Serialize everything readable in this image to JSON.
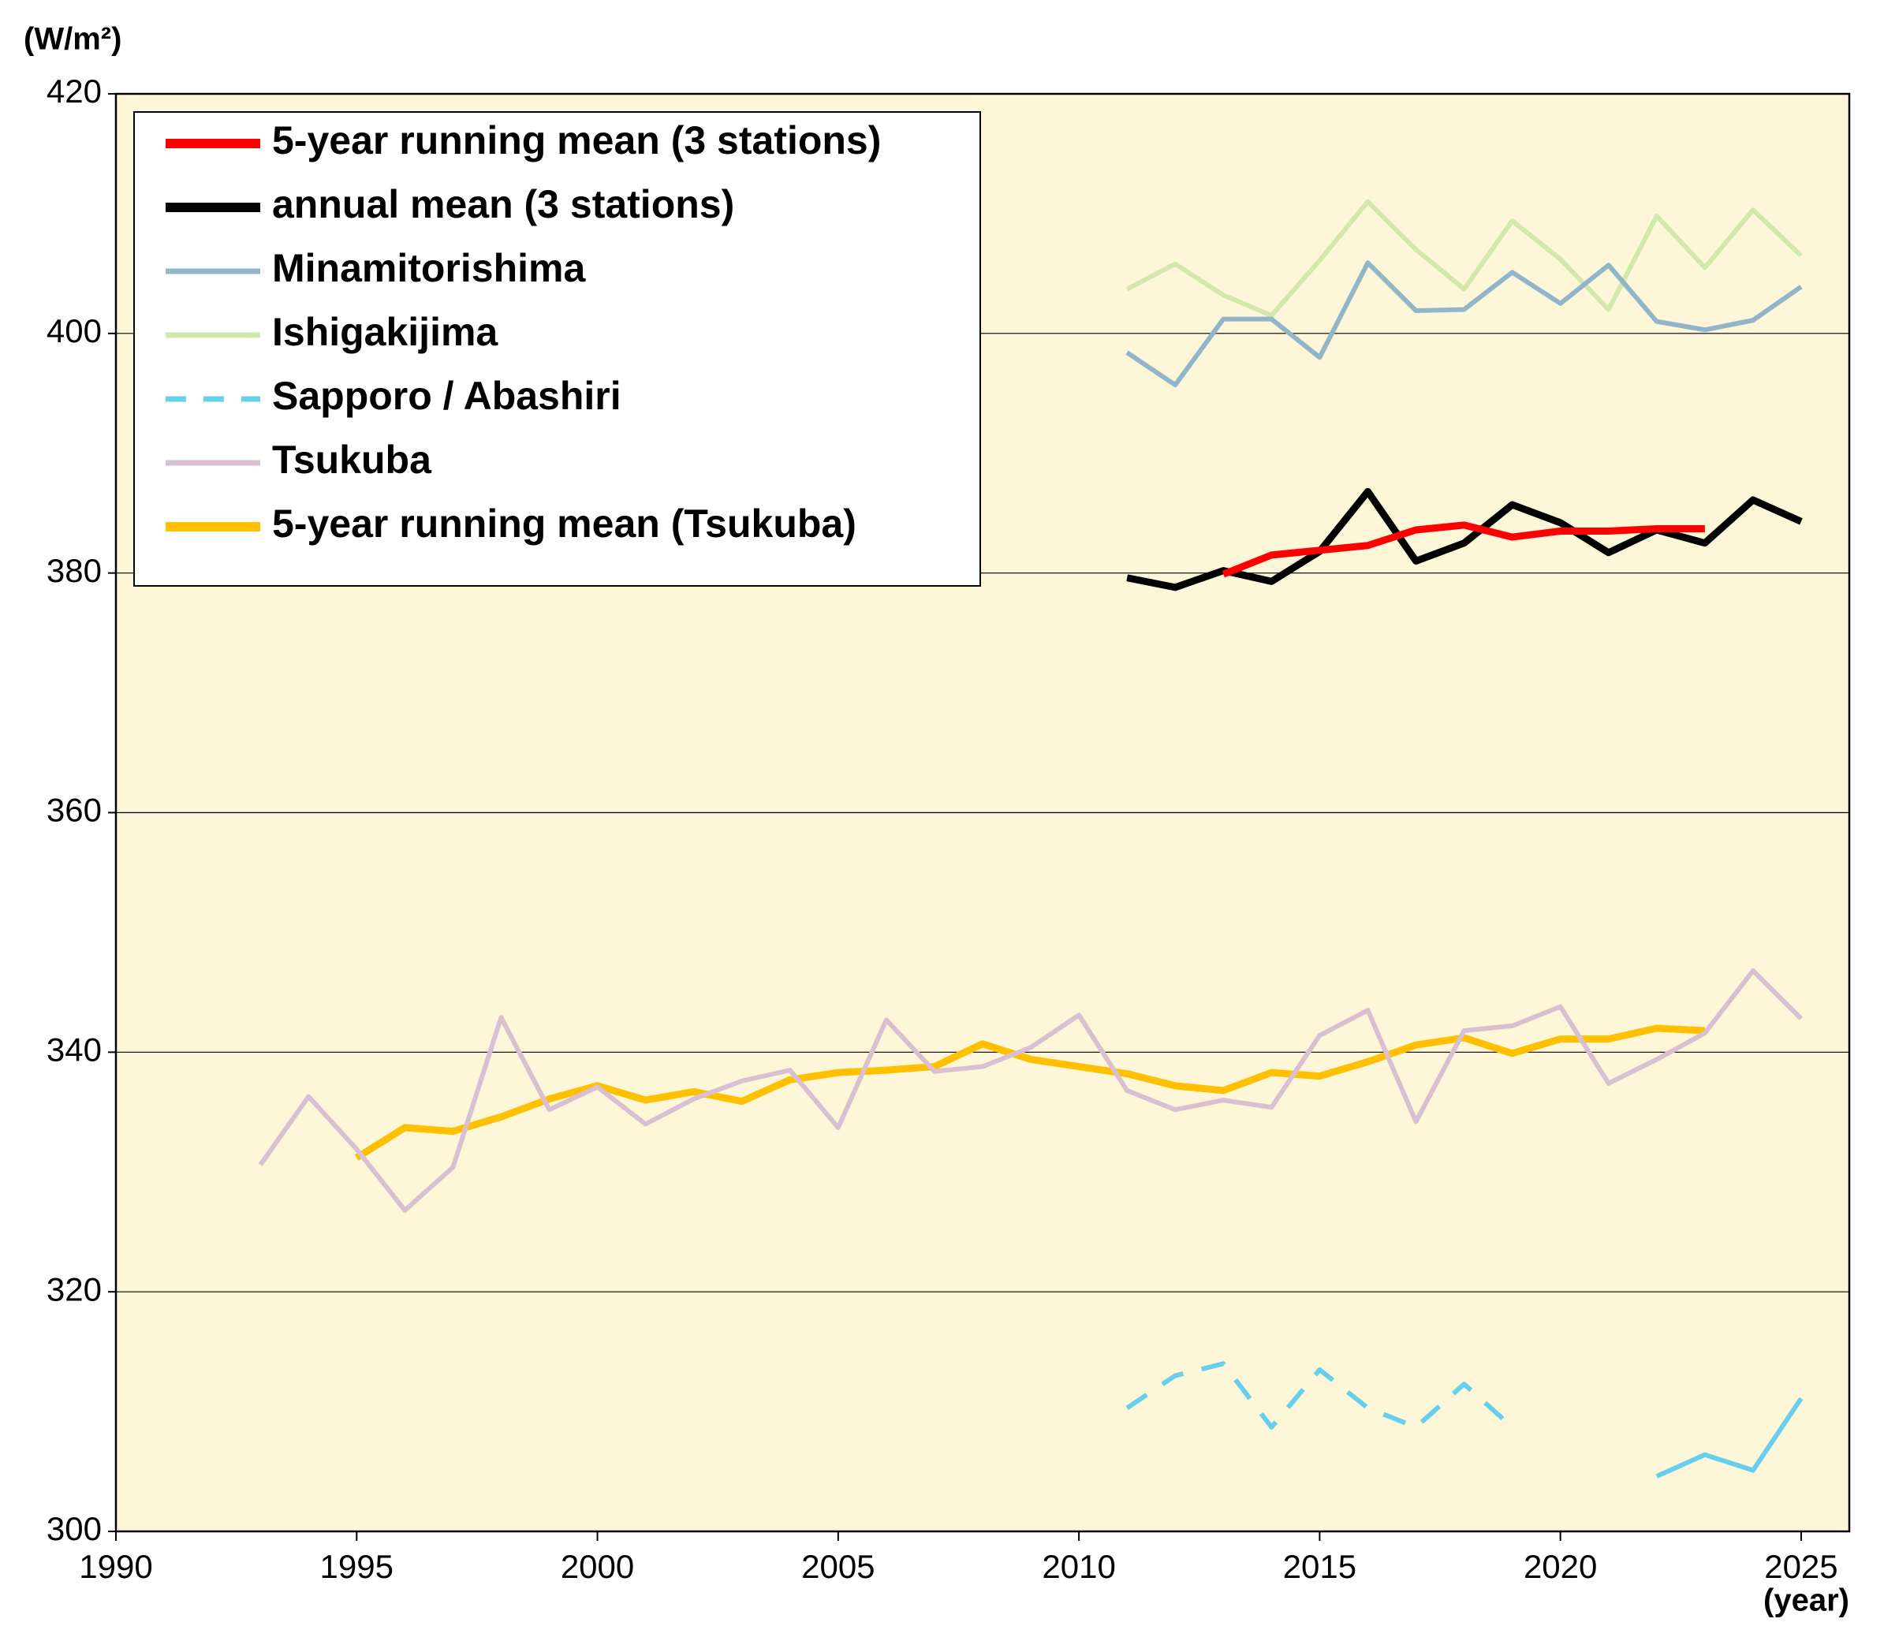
{
  "chart_data": {
    "type": "line",
    "y_label": "(W/m²)",
    "x_label": "(year)",
    "xlim": [
      1990,
      2026
    ],
    "xticks": [
      1990,
      1995,
      2000,
      2005,
      2010,
      2015,
      2020,
      2025
    ],
    "ylim": [
      300,
      420
    ],
    "yticks": [
      300,
      320,
      340,
      360,
      380,
      400,
      420
    ],
    "grid": true,
    "legend": "upper left",
    "background": "#fdf6d8",
    "series": [
      {
        "name": "5-year running mean (3 stations)",
        "color": "#ff0000",
        "width": "thick",
        "x": [
          2013,
          2014,
          2015,
          2016,
          2017,
          2018,
          2019,
          2020,
          2021,
          2022,
          2023
        ],
        "values": [
          379.9,
          381.5,
          381.9,
          382.3,
          383.6,
          384.0,
          383.0,
          383.5,
          383.5,
          383.7,
          383.7
        ]
      },
      {
        "name": "annual mean (3 stations)",
        "color": "#000000",
        "width": "thick",
        "x": [
          2011,
          2012,
          2013,
          2014,
          2015,
          2016,
          2017,
          2018,
          2019,
          2020,
          2021,
          2022,
          2023,
          2024,
          2025
        ],
        "values": [
          379.6,
          378.8,
          380.2,
          379.3,
          381.8,
          386.8,
          381.0,
          382.5,
          385.7,
          384.2,
          381.7,
          383.6,
          382.5,
          386.1,
          384.3
        ]
      },
      {
        "name": "Minamitorishima",
        "color": "#92b6c9",
        "width": "thin",
        "x": [
          2011,
          2012,
          2013,
          2014,
          2015,
          2016,
          2017,
          2018,
          2019,
          2020,
          2021,
          2022,
          2023,
          2024,
          2025
        ],
        "values": [
          398.4,
          395.7,
          401.2,
          401.2,
          398.0,
          405.9,
          401.9,
          402.0,
          405.1,
          402.5,
          405.7,
          401.0,
          400.3,
          401.1,
          403.9
        ]
      },
      {
        "name": "Ishigakijima",
        "color": "#d2e8ad",
        "width": "thin",
        "x": [
          2011,
          2012,
          2013,
          2014,
          2015,
          2016,
          2017,
          2018,
          2019,
          2020,
          2021,
          2022,
          2023,
          2024,
          2025
        ],
        "values": [
          403.7,
          405.8,
          403.2,
          401.5,
          406.1,
          411.0,
          407.0,
          403.7,
          409.4,
          406.2,
          402.0,
          409.8,
          405.5,
          410.3,
          406.5
        ]
      },
      {
        "name": "Sapporo / Abashiri",
        "color": "#66d0ec",
        "width": "thin",
        "dashed_through": 2019,
        "x": [
          2011,
          2012,
          2013,
          2014,
          2015,
          2016,
          2017,
          2018,
          2019,
          2020,
          2021,
          2022,
          2023,
          2024,
          2025
        ],
        "values": [
          310.3,
          313.0,
          314.0,
          308.7,
          313.5,
          310.3,
          308.7,
          312.3,
          308.7,
          null,
          null,
          304.6,
          306.4,
          305.1,
          311.1
        ]
      },
      {
        "name": "Tsukuba",
        "color": "#d9bfd2",
        "width": "thin",
        "x": [
          1993,
          1994,
          1995,
          1996,
          1997,
          1998,
          1999,
          2000,
          2001,
          2002,
          2003,
          2004,
          2005,
          2006,
          2007,
          2008,
          2009,
          2010,
          2011,
          2012,
          2013,
          2014,
          2015,
          2016,
          2017,
          2018,
          2019,
          2020,
          2021,
          2022,
          2023,
          2024,
          2025
        ],
        "values": [
          330.6,
          336.3,
          331.9,
          326.8,
          330.4,
          342.9,
          335.2,
          337.1,
          334.0,
          336.1,
          337.6,
          338.5,
          333.7,
          342.7,
          338.4,
          338.8,
          340.4,
          343.1,
          336.8,
          335.2,
          336.0,
          335.4,
          341.4,
          343.5,
          334.2,
          341.8,
          342.2,
          343.8,
          337.4,
          339.4,
          341.6,
          346.8,
          342.8
        ]
      },
      {
        "name": "5-year running mean (Tsukuba)",
        "color": "#ffc000",
        "width": "thick",
        "x": [
          1995,
          1996,
          1997,
          1998,
          1999,
          2000,
          2001,
          2002,
          2003,
          2004,
          2005,
          2006,
          2007,
          2008,
          2009,
          2010,
          2011,
          2012,
          2013,
          2014,
          2015,
          2016,
          2017,
          2018,
          2019,
          2020,
          2021,
          2022,
          2023
        ],
        "values": [
          331.2,
          333.7,
          333.4,
          334.6,
          336.1,
          337.2,
          336.0,
          336.7,
          335.9,
          337.7,
          338.3,
          338.5,
          338.8,
          340.7,
          339.4,
          338.8,
          338.2,
          337.2,
          336.8,
          338.3,
          338.0,
          339.2,
          340.6,
          341.2,
          339.9,
          341.1,
          341.1,
          342.0,
          341.8
        ]
      }
    ]
  }
}
